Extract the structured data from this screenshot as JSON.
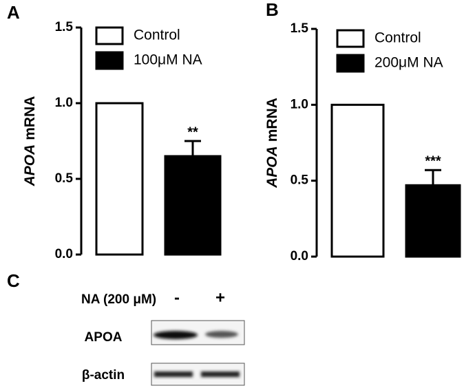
{
  "chart_data": [
    {
      "type": "bar",
      "panel_label": "A",
      "ylabel_parts": [
        {
          "text": "APOA",
          "italic": true
        },
        {
          "text": "mRNA",
          "italic": false
        }
      ],
      "categories": [
        null
      ],
      "series": [
        {
          "name": "Control",
          "color": "#ffffff",
          "values": [
            1.0
          ]
        },
        {
          "name": "100μM NA",
          "color": "#000000",
          "values": [
            0.65
          ],
          "errors": [
            0.1
          ],
          "annotations": [
            "**"
          ]
        }
      ],
      "ylim": [
        0,
        1.5
      ],
      "yticks": [
        {
          "value": 0,
          "label": "0.0"
        },
        {
          "value": 0.5,
          "label": "0.5"
        },
        {
          "value": 1,
          "label": "1.0"
        },
        {
          "value": 1.5,
          "label": "1.5"
        }
      ]
    },
    {
      "type": "bar",
      "panel_label": "B",
      "ylabel_parts": [
        {
          "text": "APOA",
          "italic": true
        },
        {
          "text": "mRNA",
          "italic": false
        }
      ],
      "categories": [
        null
      ],
      "series": [
        {
          "name": "Control",
          "color": "#ffffff",
          "values": [
            1.0
          ]
        },
        {
          "name": "200μM NA",
          "color": "#000000",
          "values": [
            0.47
          ],
          "errors": [
            0.1
          ],
          "annotations": [
            "***"
          ]
        }
      ],
      "ylim": [
        0,
        1.5
      ],
      "yticks": [
        {
          "value": 0,
          "label": "0.0"
        },
        {
          "value": 0.5,
          "label": "0.5"
        },
        {
          "value": 1,
          "label": "1.0"
        },
        {
          "value": 1.5,
          "label": "1.5"
        }
      ]
    }
  ],
  "blot": {
    "panel_label": "C",
    "treatment": "NA (200 μM)",
    "lanes": [
      "-",
      "+"
    ],
    "rows": [
      "APOA",
      "β-actin"
    ]
  }
}
